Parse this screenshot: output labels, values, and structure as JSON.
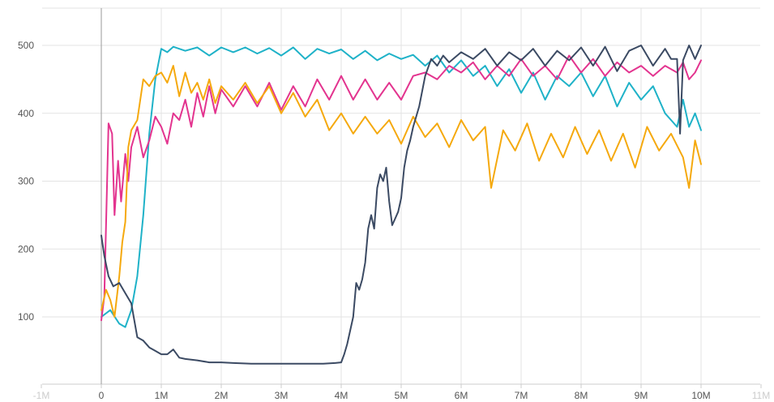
{
  "chart_data": {
    "type": "line",
    "title": "",
    "xlabel": "",
    "ylabel": "",
    "xlim": [
      -1000000,
      10500000
    ],
    "ylim": [
      0,
      530
    ],
    "grid": true,
    "x_ticks": [
      {
        "value": -1000000,
        "label": "-1M",
        "faint": true
      },
      {
        "value": 0,
        "label": "0"
      },
      {
        "value": 1000000,
        "label": "1M"
      },
      {
        "value": 2000000,
        "label": "2M"
      },
      {
        "value": 3000000,
        "label": "3M"
      },
      {
        "value": 4000000,
        "label": "4M"
      },
      {
        "value": 5000000,
        "label": "5M"
      },
      {
        "value": 6000000,
        "label": "6M"
      },
      {
        "value": 7000000,
        "label": "7M"
      },
      {
        "value": 8000000,
        "label": "8M"
      },
      {
        "value": 9000000,
        "label": "9M"
      },
      {
        "value": 10000000,
        "label": "10M"
      },
      {
        "value": 11000000,
        "label": "11M",
        "faint": true
      }
    ],
    "y_ticks": [
      {
        "value": 100,
        "label": "100"
      },
      {
        "value": 200,
        "label": "200"
      },
      {
        "value": 300,
        "label": "300"
      },
      {
        "value": 400,
        "label": "400"
      },
      {
        "value": 500,
        "label": "500"
      }
    ],
    "series": [
      {
        "color": "#1fb2c8",
        "points": [
          [
            0,
            100
          ],
          [
            150000,
            110
          ],
          [
            300000,
            90
          ],
          [
            400000,
            85
          ],
          [
            500000,
            110
          ],
          [
            600000,
            160
          ],
          [
            700000,
            250
          ],
          [
            800000,
            370
          ],
          [
            900000,
            450
          ],
          [
            1000000,
            495
          ],
          [
            1100000,
            490
          ],
          [
            1200000,
            498
          ],
          [
            1400000,
            492
          ],
          [
            1600000,
            497
          ],
          [
            1800000,
            485
          ],
          [
            2000000,
            497
          ],
          [
            2200000,
            490
          ],
          [
            2400000,
            497
          ],
          [
            2600000,
            488
          ],
          [
            2800000,
            496
          ],
          [
            3000000,
            485
          ],
          [
            3200000,
            497
          ],
          [
            3400000,
            480
          ],
          [
            3600000,
            495
          ],
          [
            3800000,
            488
          ],
          [
            4000000,
            494
          ],
          [
            4200000,
            480
          ],
          [
            4400000,
            492
          ],
          [
            4600000,
            478
          ],
          [
            4800000,
            488
          ],
          [
            5000000,
            480
          ],
          [
            5200000,
            486
          ],
          [
            5400000,
            470
          ],
          [
            5600000,
            485
          ],
          [
            5800000,
            460
          ],
          [
            6000000,
            478
          ],
          [
            6200000,
            455
          ],
          [
            6400000,
            470
          ],
          [
            6600000,
            440
          ],
          [
            6800000,
            465
          ],
          [
            7000000,
            430
          ],
          [
            7200000,
            460
          ],
          [
            7400000,
            420
          ],
          [
            7600000,
            455
          ],
          [
            7800000,
            440
          ],
          [
            8000000,
            460
          ],
          [
            8200000,
            425
          ],
          [
            8400000,
            455
          ],
          [
            8600000,
            410
          ],
          [
            8800000,
            445
          ],
          [
            9000000,
            420
          ],
          [
            9200000,
            440
          ],
          [
            9400000,
            400
          ],
          [
            9600000,
            380
          ],
          [
            9700000,
            420
          ],
          [
            9800000,
            380
          ],
          [
            9900000,
            400
          ],
          [
            10000000,
            375
          ]
        ]
      },
      {
        "color": "#e3348f",
        "points": [
          [
            0,
            95
          ],
          [
            50000,
            130
          ],
          [
            120000,
            385
          ],
          [
            180000,
            370
          ],
          [
            220000,
            250
          ],
          [
            280000,
            330
          ],
          [
            330000,
            270
          ],
          [
            400000,
            340
          ],
          [
            450000,
            300
          ],
          [
            500000,
            350
          ],
          [
            600000,
            380
          ],
          [
            700000,
            335
          ],
          [
            800000,
            360
          ],
          [
            900000,
            395
          ],
          [
            1000000,
            380
          ],
          [
            1100000,
            355
          ],
          [
            1200000,
            400
          ],
          [
            1300000,
            390
          ],
          [
            1400000,
            420
          ],
          [
            1500000,
            380
          ],
          [
            1600000,
            430
          ],
          [
            1700000,
            395
          ],
          [
            1800000,
            440
          ],
          [
            1900000,
            400
          ],
          [
            2000000,
            435
          ],
          [
            2200000,
            410
          ],
          [
            2400000,
            440
          ],
          [
            2600000,
            410
          ],
          [
            2800000,
            445
          ],
          [
            3000000,
            405
          ],
          [
            3200000,
            440
          ],
          [
            3400000,
            410
          ],
          [
            3600000,
            450
          ],
          [
            3800000,
            420
          ],
          [
            4000000,
            455
          ],
          [
            4200000,
            420
          ],
          [
            4400000,
            450
          ],
          [
            4600000,
            420
          ],
          [
            4800000,
            445
          ],
          [
            5000000,
            420
          ],
          [
            5200000,
            455
          ],
          [
            5400000,
            460
          ],
          [
            5600000,
            450
          ],
          [
            5800000,
            470
          ],
          [
            6000000,
            460
          ],
          [
            6200000,
            475
          ],
          [
            6400000,
            450
          ],
          [
            6600000,
            470
          ],
          [
            6800000,
            455
          ],
          [
            7000000,
            480
          ],
          [
            7200000,
            455
          ],
          [
            7400000,
            470
          ],
          [
            7600000,
            450
          ],
          [
            7800000,
            485
          ],
          [
            8000000,
            460
          ],
          [
            8200000,
            480
          ],
          [
            8400000,
            455
          ],
          [
            8600000,
            475
          ],
          [
            8800000,
            460
          ],
          [
            9000000,
            470
          ],
          [
            9200000,
            455
          ],
          [
            9400000,
            470
          ],
          [
            9600000,
            460
          ],
          [
            9700000,
            475
          ],
          [
            9800000,
            450
          ],
          [
            9900000,
            460
          ],
          [
            10000000,
            478
          ]
        ]
      },
      {
        "color": "#f5a90e",
        "points": [
          [
            0,
            110
          ],
          [
            80000,
            140
          ],
          [
            150000,
            125
          ],
          [
            220000,
            100
          ],
          [
            300000,
            160
          ],
          [
            350000,
            210
          ],
          [
            400000,
            240
          ],
          [
            450000,
            350
          ],
          [
            500000,
            375
          ],
          [
            600000,
            390
          ],
          [
            700000,
            450
          ],
          [
            800000,
            440
          ],
          [
            900000,
            455
          ],
          [
            1000000,
            460
          ],
          [
            1100000,
            445
          ],
          [
            1200000,
            470
          ],
          [
            1300000,
            425
          ],
          [
            1400000,
            460
          ],
          [
            1500000,
            430
          ],
          [
            1600000,
            445
          ],
          [
            1700000,
            420
          ],
          [
            1800000,
            450
          ],
          [
            1900000,
            415
          ],
          [
            2000000,
            440
          ],
          [
            2200000,
            420
          ],
          [
            2400000,
            445
          ],
          [
            2600000,
            415
          ],
          [
            2800000,
            440
          ],
          [
            3000000,
            400
          ],
          [
            3200000,
            430
          ],
          [
            3400000,
            395
          ],
          [
            3600000,
            420
          ],
          [
            3800000,
            375
          ],
          [
            4000000,
            400
          ],
          [
            4200000,
            370
          ],
          [
            4400000,
            395
          ],
          [
            4600000,
            370
          ],
          [
            4800000,
            390
          ],
          [
            5000000,
            355
          ],
          [
            5200000,
            395
          ],
          [
            5400000,
            365
          ],
          [
            5600000,
            385
          ],
          [
            5800000,
            350
          ],
          [
            6000000,
            390
          ],
          [
            6200000,
            360
          ],
          [
            6400000,
            380
          ],
          [
            6500000,
            290
          ],
          [
            6700000,
            375
          ],
          [
            6900000,
            345
          ],
          [
            7100000,
            385
          ],
          [
            7300000,
            330
          ],
          [
            7500000,
            370
          ],
          [
            7700000,
            335
          ],
          [
            7900000,
            380
          ],
          [
            8100000,
            340
          ],
          [
            8300000,
            375
          ],
          [
            8500000,
            330
          ],
          [
            8700000,
            370
          ],
          [
            8900000,
            320
          ],
          [
            9100000,
            380
          ],
          [
            9300000,
            345
          ],
          [
            9500000,
            370
          ],
          [
            9700000,
            335
          ],
          [
            9800000,
            290
          ],
          [
            9900000,
            360
          ],
          [
            10000000,
            325
          ]
        ]
      },
      {
        "color": "#3b4a63",
        "points": [
          [
            0,
            220
          ],
          [
            50000,
            190
          ],
          [
            120000,
            160
          ],
          [
            200000,
            145
          ],
          [
            300000,
            150
          ],
          [
            400000,
            135
          ],
          [
            500000,
            120
          ],
          [
            550000,
            95
          ],
          [
            600000,
            70
          ],
          [
            700000,
            65
          ],
          [
            800000,
            55
          ],
          [
            900000,
            50
          ],
          [
            1000000,
            45
          ],
          [
            1100000,
            45
          ],
          [
            1200000,
            52
          ],
          [
            1300000,
            40
          ],
          [
            1400000,
            38
          ],
          [
            1600000,
            36
          ],
          [
            1800000,
            33
          ],
          [
            2000000,
            33
          ],
          [
            2200000,
            32
          ],
          [
            2500000,
            31
          ],
          [
            2800000,
            31
          ],
          [
            3100000,
            31
          ],
          [
            3400000,
            31
          ],
          [
            3700000,
            31
          ],
          [
            3900000,
            32
          ],
          [
            4000000,
            33
          ],
          [
            4050000,
            45
          ],
          [
            4100000,
            60
          ],
          [
            4200000,
            100
          ],
          [
            4250000,
            150
          ],
          [
            4300000,
            140
          ],
          [
            4350000,
            155
          ],
          [
            4400000,
            180
          ],
          [
            4450000,
            230
          ],
          [
            4500000,
            250
          ],
          [
            4550000,
            230
          ],
          [
            4600000,
            290
          ],
          [
            4650000,
            310
          ],
          [
            4700000,
            300
          ],
          [
            4750000,
            320
          ],
          [
            4800000,
            270
          ],
          [
            4850000,
            235
          ],
          [
            4900000,
            245
          ],
          [
            4950000,
            255
          ],
          [
            5000000,
            275
          ],
          [
            5050000,
            320
          ],
          [
            5100000,
            345
          ],
          [
            5150000,
            360
          ],
          [
            5200000,
            380
          ],
          [
            5300000,
            410
          ],
          [
            5400000,
            455
          ],
          [
            5500000,
            480
          ],
          [
            5600000,
            470
          ],
          [
            5700000,
            485
          ],
          [
            5800000,
            475
          ],
          [
            6000000,
            490
          ],
          [
            6200000,
            480
          ],
          [
            6400000,
            495
          ],
          [
            6600000,
            470
          ],
          [
            6800000,
            490
          ],
          [
            7000000,
            478
          ],
          [
            7200000,
            495
          ],
          [
            7400000,
            470
          ],
          [
            7600000,
            492
          ],
          [
            7800000,
            478
          ],
          [
            8000000,
            497
          ],
          [
            8200000,
            470
          ],
          [
            8400000,
            498
          ],
          [
            8600000,
            462
          ],
          [
            8800000,
            492
          ],
          [
            9000000,
            500
          ],
          [
            9200000,
            470
          ],
          [
            9400000,
            495
          ],
          [
            9500000,
            480
          ],
          [
            9600000,
            480
          ],
          [
            9650000,
            370
          ],
          [
            9700000,
            478
          ],
          [
            9800000,
            500
          ],
          [
            9900000,
            480
          ],
          [
            10000000,
            500
          ]
        ]
      }
    ]
  }
}
